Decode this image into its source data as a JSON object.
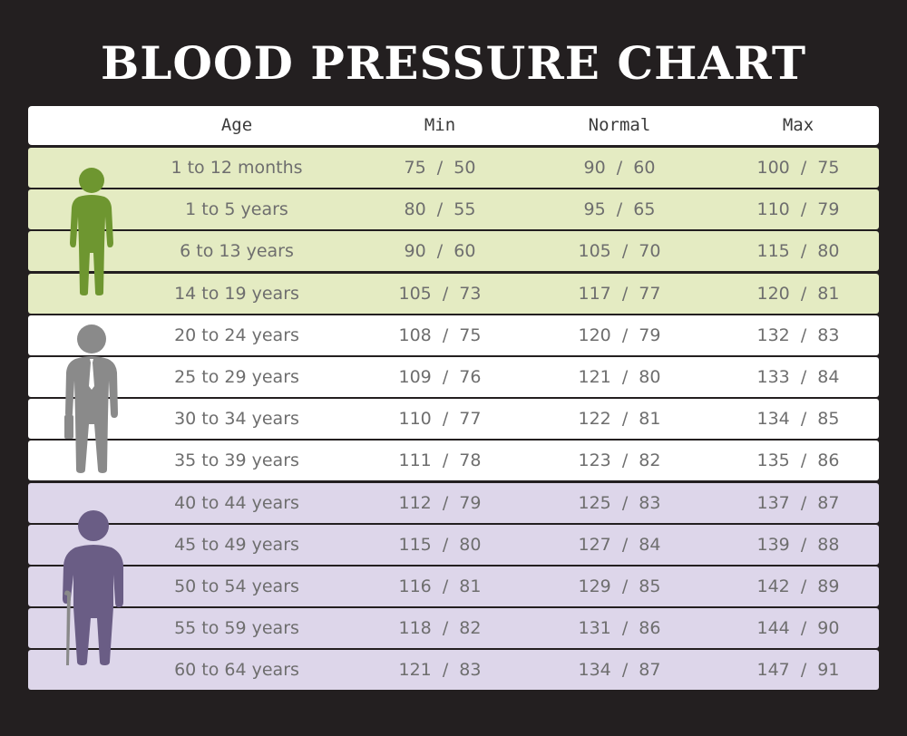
{
  "title": "BLOOD PRESSURE CHART",
  "colors": {
    "background": "#231f20",
    "child_band": "#e4ebc2",
    "adult_band": "#ffffff",
    "senior_band": "#ddd6ea",
    "child_figure": "#6e9630",
    "adult_figure": "#8a8a8a",
    "senior_figure": "#6a5d85"
  },
  "chart_data": {
    "type": "table",
    "columns": [
      "Age",
      "Min",
      "Normal",
      "Max"
    ],
    "rows": [
      {
        "age": "1 to 12 months",
        "min": "75  /  50",
        "normal": "90  /  60",
        "max": "100  /  75",
        "group": "child"
      },
      {
        "age": "1 to 5 years",
        "min": "80  /  55",
        "normal": "95  /  65",
        "max": "110  /  79",
        "group": "child"
      },
      {
        "age": "6 to 13 years",
        "min": "90  /  60",
        "normal": "105  /  70",
        "max": "115  /  80",
        "group": "child"
      },
      {
        "age": "14 to 19 years",
        "min": "105  /  73",
        "normal": "117  /  77",
        "max": "120  /  81",
        "group": "child"
      },
      {
        "age": "20 to 24 years",
        "min": "108  /  75",
        "normal": "120  /  79",
        "max": "132  /  83",
        "group": "adult"
      },
      {
        "age": "25 to 29 years",
        "min": "109  /  76",
        "normal": "121  /  80",
        "max": "133  /  84",
        "group": "adult"
      },
      {
        "age": "30 to 34 years",
        "min": "110  /  77",
        "normal": "122  /  81",
        "max": "134  /  85",
        "group": "adult"
      },
      {
        "age": "35 to 39 years",
        "min": "111  /  78",
        "normal": "123  /  82",
        "max": "135  /  86",
        "group": "adult"
      },
      {
        "age": "40 to 44 years",
        "min": "112  /  79",
        "normal": "125  /  83",
        "max": "137  /  87",
        "group": "senior"
      },
      {
        "age": "45 to 49 years",
        "min": "115  /  80",
        "normal": "127  /  84",
        "max": "139  /  88",
        "group": "senior"
      },
      {
        "age": "50 to 54 years",
        "min": "116  /  81",
        "normal": "129  /  85",
        "max": "142  /  89",
        "group": "senior"
      },
      {
        "age": "55 to 59 years",
        "min": "118  /  82",
        "normal": "131  /  86",
        "max": "144  /  90",
        "group": "senior"
      },
      {
        "age": "60 to 64 years",
        "min": "121  /  83",
        "normal": "134  /  87",
        "max": "147  /  91",
        "group": "senior"
      }
    ]
  },
  "icons": {
    "child": "child-figure-icon",
    "adult": "businessman-figure-icon",
    "senior": "elderly-figure-icon"
  }
}
